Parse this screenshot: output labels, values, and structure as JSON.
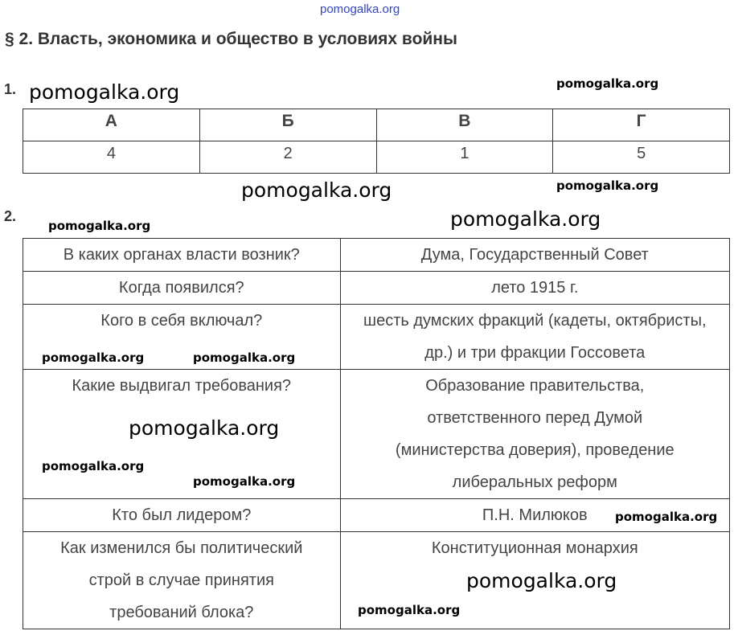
{
  "header_watermark": "pomogalka.org",
  "title": "§ 2. Власть, экономика и общество в условиях войны",
  "task1": {
    "number": "1.",
    "headers": [
      "А",
      "Б",
      "В",
      "Г"
    ],
    "values": [
      "4",
      "2",
      "1",
      "5"
    ]
  },
  "task2": {
    "number": "2.",
    "rows": [
      {
        "q": "В каких органах власти возник?",
        "a": "Дума, Государственный Совет"
      },
      {
        "q": "Когда появился?",
        "a": "лето 1915 г."
      },
      {
        "q": "Кого в себя включал?",
        "a": "шесть думских фракций (кадеты, октябристы, др.) и три фракции Госсовета"
      },
      {
        "q": "Какие выдвигал требования?",
        "a": "Образование правительства, ответственного перед Думой (министерства доверия), проведение либеральных реформ"
      },
      {
        "q": "Кто был лидером?",
        "a": "П.Н. Милюков"
      },
      {
        "q": "Как изменился бы политический строй в случае принятия требований блока?",
        "a": "Конституционная монархия"
      }
    ]
  },
  "watermark": "pomogalka.org"
}
